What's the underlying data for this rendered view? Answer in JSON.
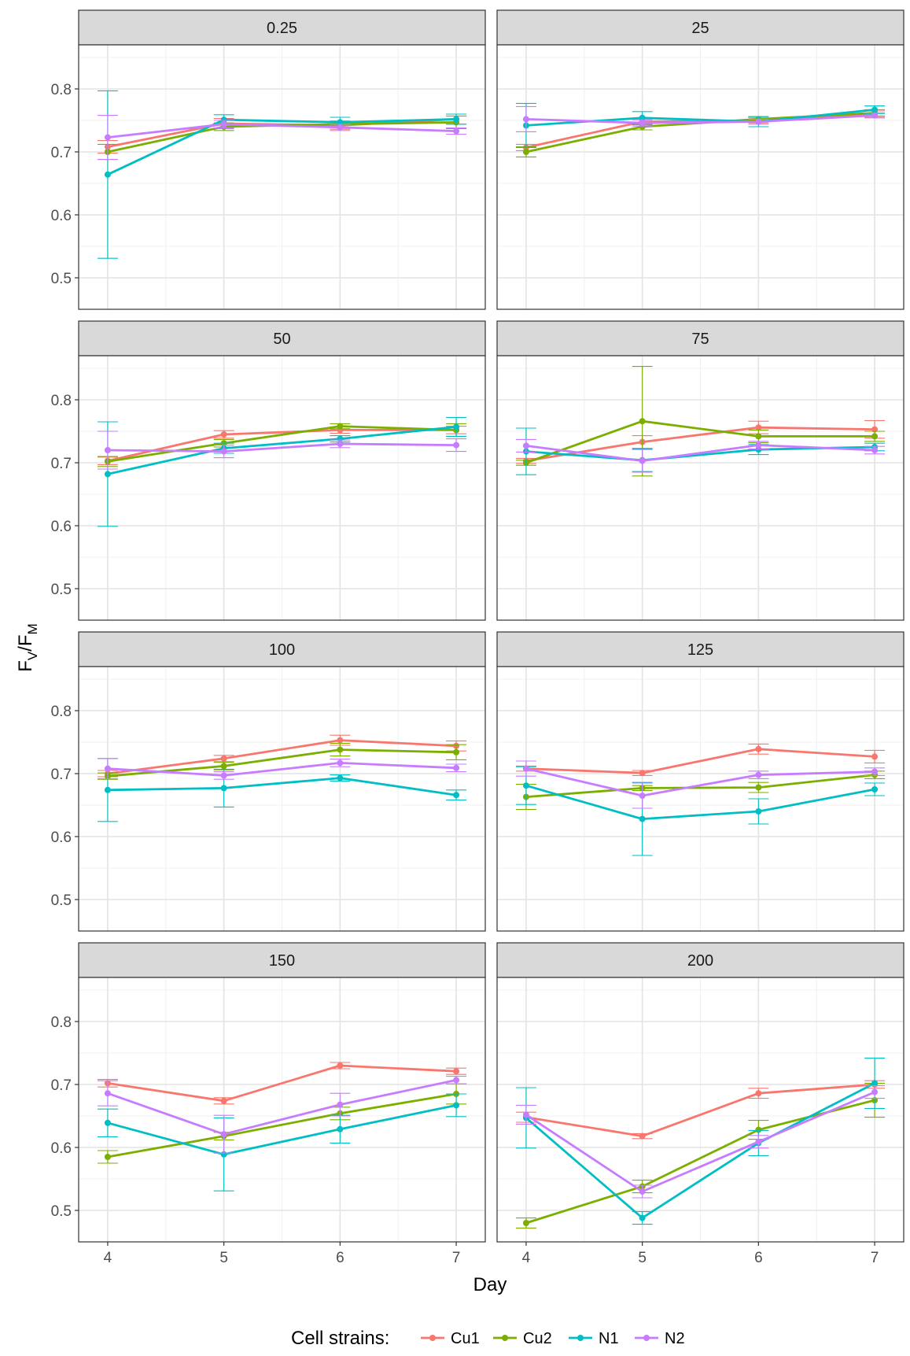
{
  "chart_data": {
    "type": "line",
    "facet_variable_values": [
      "0.25",
      "25",
      "50",
      "75",
      "100",
      "125",
      "150",
      "200"
    ],
    "xlabel": "Day",
    "ylabel_main": "F",
    "ylabel_sub1": "V",
    "ylabel_slash": "/",
    "ylabel_sub2": "M",
    "ylabel": "FV/FM",
    "x_ticks": [
      "4",
      "5",
      "6",
      "7"
    ],
    "y_ticks": [
      "0.5",
      "0.6",
      "0.7",
      "0.8"
    ],
    "xlim": [
      3.75,
      7.25
    ],
    "ylim": [
      0.45,
      0.87
    ],
    "grid": true,
    "legend_position": "bottom",
    "legend_title": "Cell strains:",
    "series_names": [
      "Cu1",
      "Cu2",
      "N1",
      "N2"
    ],
    "series_colors": [
      "#F8766D",
      "#7CAE00",
      "#00BFC4",
      "#C77CFF"
    ],
    "x": [
      4,
      5,
      6,
      7
    ],
    "facets": [
      {
        "label": "0.25",
        "series": [
          {
            "name": "Cu1",
            "values": [
              0.708,
              0.745,
              0.742,
              0.752
            ],
            "err": [
              0.01,
              0.008,
              0.006,
              0.008
            ]
          },
          {
            "name": "Cu2",
            "values": [
              0.7,
              0.74,
              0.744,
              0.747
            ],
            "err": [
              0.012,
              0.006,
              0.005,
              0.01
            ]
          },
          {
            "name": "N1",
            "values": [
              0.664,
              0.751,
              0.747,
              0.752
            ],
            "err": [
              0.133,
              0.008,
              0.008,
              0.008
            ]
          },
          {
            "name": "N2",
            "values": [
              0.723,
              0.744,
              0.739,
              0.733
            ],
            "err": [
              0.035,
              0.006,
              0.005,
              0.005
            ]
          }
        ]
      },
      {
        "label": "25",
        "series": [
          {
            "name": "Cu1",
            "values": [
              0.707,
              0.748,
              0.75,
              0.76
            ],
            "err": [
              0.005,
              0.005,
              0.004,
              0.005
            ]
          },
          {
            "name": "Cu2",
            "values": [
              0.7,
              0.74,
              0.752,
              0.762
            ],
            "err": [
              0.008,
              0.005,
              0.004,
              0.005
            ]
          },
          {
            "name": "N1",
            "values": [
              0.742,
              0.754,
              0.748,
              0.767
            ],
            "err": [
              0.035,
              0.01,
              0.008,
              0.006
            ]
          },
          {
            "name": "N2",
            "values": [
              0.752,
              0.746,
              0.748,
              0.758
            ],
            "err": [
              0.02,
              0.005,
              0.004,
              0.004
            ]
          }
        ]
      },
      {
        "label": "50",
        "series": [
          {
            "name": "Cu1",
            "values": [
              0.703,
              0.745,
              0.752,
              0.752
            ],
            "err": [
              0.006,
              0.006,
              0.005,
              0.006
            ]
          },
          {
            "name": "Cu2",
            "values": [
              0.702,
              0.731,
              0.758,
              0.752
            ],
            "err": [
              0.008,
              0.006,
              0.004,
              0.01
            ]
          },
          {
            "name": "N1",
            "values": [
              0.682,
              0.723,
              0.738,
              0.757
            ],
            "err": [
              0.083,
              0.008,
              0.005,
              0.015
            ]
          },
          {
            "name": "N2",
            "values": [
              0.72,
              0.718,
              0.73,
              0.728
            ],
            "err": [
              0.03,
              0.01,
              0.006,
              0.01
            ]
          }
        ]
      },
      {
        "label": "75",
        "series": [
          {
            "name": "Cu1",
            "values": [
              0.703,
              0.733,
              0.756,
              0.753
            ],
            "err": [
              0.004,
              0.01,
              0.01,
              0.014
            ]
          },
          {
            "name": "Cu2",
            "values": [
              0.7,
              0.766,
              0.742,
              0.742
            ],
            "err": [
              0.004,
              0.087,
              0.01,
              0.008
            ]
          },
          {
            "name": "N1",
            "values": [
              0.718,
              0.704,
              0.721,
              0.725
            ],
            "err": [
              0.037,
              0.018,
              0.008,
              0.006
            ]
          },
          {
            "name": "N2",
            "values": [
              0.727,
              0.703,
              0.728,
              0.72
            ],
            "err": [
              0.01,
              0.018,
              0.006,
              0.006
            ]
          }
        ]
      },
      {
        "label": "100",
        "series": [
          {
            "name": "Cu1",
            "values": [
              0.7,
              0.724,
              0.753,
              0.744
            ],
            "err": [
              0.005,
              0.005,
              0.008,
              0.008
            ]
          },
          {
            "name": "Cu2",
            "values": [
              0.696,
              0.712,
              0.738,
              0.734
            ],
            "err": [
              0.005,
              0.006,
              0.01,
              0.012
            ]
          },
          {
            "name": "N1",
            "values": [
              0.674,
              0.677,
              0.693,
              0.666
            ],
            "err": [
              0.05,
              0.03,
              0.005,
              0.008
            ]
          },
          {
            "name": "N2",
            "values": [
              0.708,
              0.697,
              0.717,
              0.709
            ],
            "err": [
              0.016,
              0.006,
              0.006,
              0.006
            ]
          }
        ]
      },
      {
        "label": "125",
        "series": [
          {
            "name": "Cu1",
            "values": [
              0.708,
              0.701,
              0.739,
              0.727
            ],
            "err": [
              0.004,
              0.004,
              0.008,
              0.01
            ]
          },
          {
            "name": "Cu2",
            "values": [
              0.663,
              0.677,
              0.678,
              0.698
            ],
            "err": [
              0.02,
              0.004,
              0.008,
              0.006
            ]
          },
          {
            "name": "N1",
            "values": [
              0.681,
              0.628,
              0.64,
              0.675
            ],
            "err": [
              0.03,
              0.058,
              0.02,
              0.01
            ]
          },
          {
            "name": "N2",
            "values": [
              0.708,
              0.665,
              0.698,
              0.703
            ],
            "err": [
              0.012,
              0.02,
              0.006,
              0.006
            ]
          }
        ]
      },
      {
        "label": "150",
        "series": [
          {
            "name": "Cu1",
            "values": [
              0.702,
              0.674,
              0.73,
              0.721
            ],
            "err": [
              0.006,
              0.005,
              0.005,
              0.005
            ]
          },
          {
            "name": "Cu2",
            "values": [
              0.585,
              0.618,
              0.654,
              0.685
            ],
            "err": [
              0.01,
              0.006,
              0.01,
              0.016
            ]
          },
          {
            "name": "N1",
            "values": [
              0.639,
              0.589,
              0.629,
              0.667
            ],
            "err": [
              0.022,
              0.058,
              0.022,
              0.018
            ]
          },
          {
            "name": "N2",
            "values": [
              0.686,
              0.621,
              0.668,
              0.707
            ],
            "err": [
              0.02,
              0.03,
              0.018,
              0.006
            ]
          }
        ]
      },
      {
        "label": "200",
        "series": [
          {
            "name": "Cu1",
            "values": [
              0.648,
              0.618,
              0.686,
              0.7
            ],
            "err": [
              0.008,
              0.004,
              0.008,
              0.006
            ]
          },
          {
            "name": "Cu2",
            "values": [
              0.48,
              0.538,
              0.628,
              0.675
            ],
            "err": [
              0.008,
              0.01,
              0.015,
              0.027
            ]
          },
          {
            "name": "N1",
            "values": [
              0.647,
              0.488,
              0.607,
              0.702
            ],
            "err": [
              0.048,
              0.01,
              0.02,
              0.04
            ]
          },
          {
            "name": "N2",
            "values": [
              0.652,
              0.53,
              0.609,
              0.688
            ],
            "err": [
              0.015,
              0.01,
              0.01,
              0.01
            ]
          }
        ]
      }
    ]
  }
}
